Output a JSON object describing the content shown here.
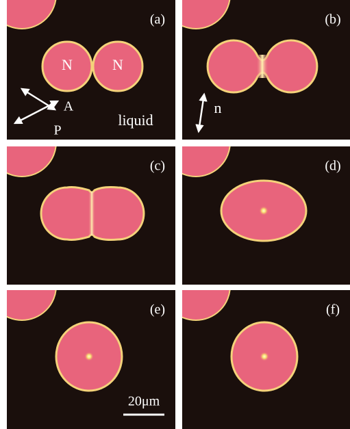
{
  "panels": [
    {
      "label": "(a)",
      "droplet_labels": [
        "N",
        "N"
      ],
      "polarizer_labels": [
        "A",
        "P"
      ],
      "phase_label": "liquid"
    },
    {
      "label": "(b)",
      "director_label": "n"
    },
    {
      "label": "(c)"
    },
    {
      "label": "(d)"
    },
    {
      "label": "(e)",
      "scale_bar_label": "20μm"
    },
    {
      "label": "(f)"
    }
  ]
}
